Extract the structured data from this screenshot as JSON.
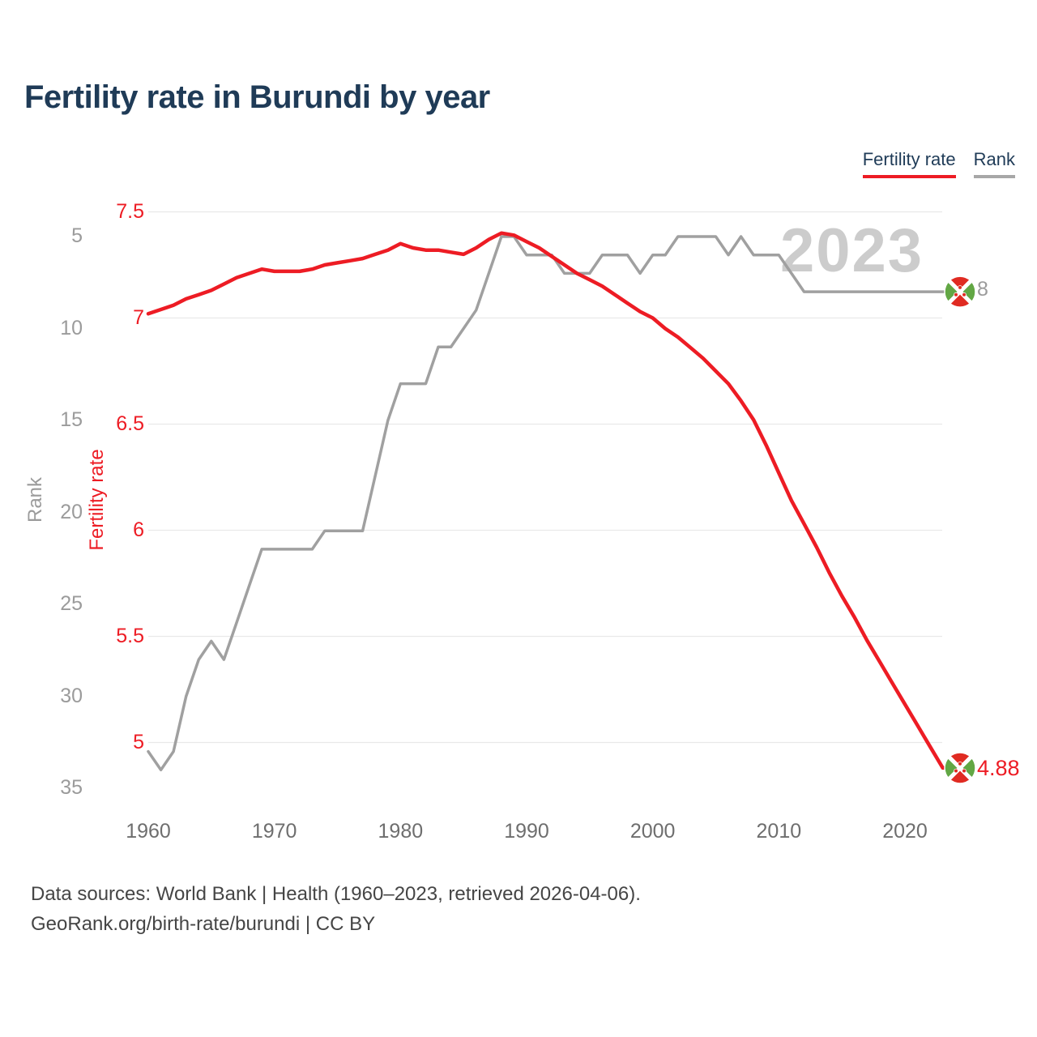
{
  "page": {
    "title": "Fertility rate in Burundi by year"
  },
  "legend": [
    {
      "label": "Fertility rate",
      "color": "#ed1c24"
    },
    {
      "label": "Rank",
      "color": "#a7a7a7"
    }
  ],
  "watermark": "2023",
  "end_labels": {
    "rank": "8",
    "fertility": "4.88"
  },
  "footer": {
    "line1": "Data sources: World Bank | Health (1960–2023, retrieved 2026-04-06).",
    "line2": "GeoRank.org/birth-rate/burundi | CC BY"
  },
  "chart_data": {
    "type": "line",
    "title": "Fertility rate in Burundi by year",
    "grid": "horizontal",
    "legend_position": "top-right",
    "x_label": "",
    "x_ticks": [
      1960,
      1970,
      1980,
      1990,
      2000,
      2010,
      2020
    ],
    "x": [
      1960,
      1961,
      1962,
      1963,
      1964,
      1965,
      1966,
      1967,
      1968,
      1969,
      1970,
      1971,
      1972,
      1973,
      1974,
      1975,
      1976,
      1977,
      1978,
      1979,
      1980,
      1981,
      1982,
      1983,
      1984,
      1985,
      1986,
      1987,
      1988,
      1989,
      1990,
      1991,
      1992,
      1993,
      1994,
      1995,
      1996,
      1997,
      1998,
      1999,
      2000,
      2001,
      2002,
      2003,
      2004,
      2005,
      2006,
      2007,
      2008,
      2009,
      2010,
      2011,
      2012,
      2013,
      2014,
      2015,
      2016,
      2017,
      2018,
      2019,
      2020,
      2021,
      2022,
      2023
    ],
    "fertility_axis": {
      "label": "Fertility rate",
      "color": "#ed1c24",
      "ticks": [
        7.5,
        7,
        6.5,
        6,
        5.5,
        5
      ],
      "range": [
        4.75,
        7.5
      ]
    },
    "rank_axis": {
      "label": "Rank",
      "color": "#9b9b9b",
      "ticks": [
        5,
        10,
        15,
        20,
        25,
        30,
        35
      ],
      "range": [
        4,
        36
      ],
      "inverted": true
    },
    "series": [
      {
        "name": "Fertility rate",
        "color": "#ed1c24",
        "axis": "fertility",
        "end_value": 4.88,
        "values": [
          7.02,
          7.04,
          7.06,
          7.09,
          7.11,
          7.13,
          7.16,
          7.19,
          7.21,
          7.23,
          7.22,
          7.22,
          7.22,
          7.23,
          7.25,
          7.26,
          7.27,
          7.28,
          7.3,
          7.32,
          7.35,
          7.33,
          7.32,
          7.32,
          7.31,
          7.3,
          7.33,
          7.37,
          7.4,
          7.39,
          7.36,
          7.33,
          7.29,
          7.25,
          7.21,
          7.18,
          7.15,
          7.11,
          7.07,
          7.03,
          7.0,
          6.95,
          6.91,
          6.86,
          6.81,
          6.75,
          6.69,
          6.61,
          6.52,
          6.4,
          6.27,
          6.14,
          6.03,
          5.92,
          5.8,
          5.69,
          5.59,
          5.48,
          5.38,
          5.28,
          5.18,
          5.08,
          4.98,
          4.88
        ]
      },
      {
        "name": "Rank",
        "color": "#a0a0a0",
        "axis": "rank",
        "end_value": 8,
        "values": [
          33,
          34,
          33,
          30,
          28,
          27,
          28,
          26,
          24,
          22,
          22,
          22,
          22,
          22,
          21,
          21,
          21,
          21,
          18,
          15,
          13,
          13,
          13,
          11,
          11,
          10,
          9,
          7,
          5,
          5,
          6,
          6,
          6,
          7,
          7,
          7,
          6,
          6,
          6,
          7,
          6,
          6,
          5,
          5,
          5,
          5,
          6,
          5,
          6,
          6,
          6,
          7,
          8,
          8,
          8,
          8,
          8,
          8,
          8,
          8,
          8,
          8,
          8,
          8
        ]
      }
    ],
    "marker": {
      "type": "burundi-flag-circle",
      "red": "#e02b22",
      "green": "#62a744",
      "white": "#ffffff"
    },
    "year_watermark": "2023"
  }
}
